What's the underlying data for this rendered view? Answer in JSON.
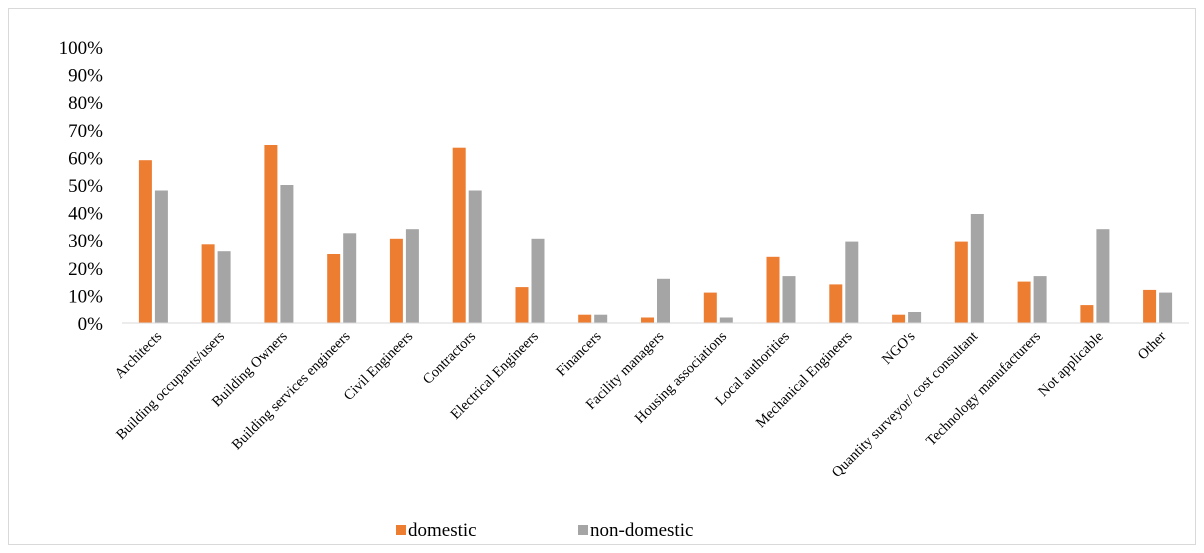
{
  "chart_data": {
    "type": "bar",
    "title": "",
    "xlabel": "",
    "ylabel": "",
    "ylim": [
      0,
      100
    ],
    "y_tick_labels": [
      "0%",
      "10%",
      "20%",
      "30%",
      "40%",
      "50%",
      "60%",
      "70%",
      "80%",
      "90%",
      "100%"
    ],
    "grid": false,
    "legend_position": "bottom",
    "categories": [
      "Architects",
      "Building occupants/users",
      "Building Owners",
      "Building services engineers",
      "Civil Engineers",
      "Contractors",
      "Electrical Engineers",
      "Financers",
      "Facility managers",
      "Housing associations",
      "Local authorities",
      "Mechanical Engineers",
      "NGO's",
      "Quantity surveyor/ cost consultant",
      "Technology manufacturers",
      "Not applicable",
      "Other"
    ],
    "series": [
      {
        "name": "domestic",
        "color": "#ED7D31",
        "values": [
          59,
          28.5,
          64.5,
          25,
          30.5,
          63.5,
          13,
          3,
          2,
          11,
          24,
          14,
          3,
          29.5,
          15,
          6.5,
          12
        ]
      },
      {
        "name": "non-domestic",
        "color": "#A5A5A5",
        "values": [
          48,
          26,
          50,
          32.5,
          34,
          48,
          30.5,
          3,
          16,
          2,
          17,
          29.5,
          4,
          39.5,
          17,
          34,
          11
        ]
      }
    ]
  }
}
